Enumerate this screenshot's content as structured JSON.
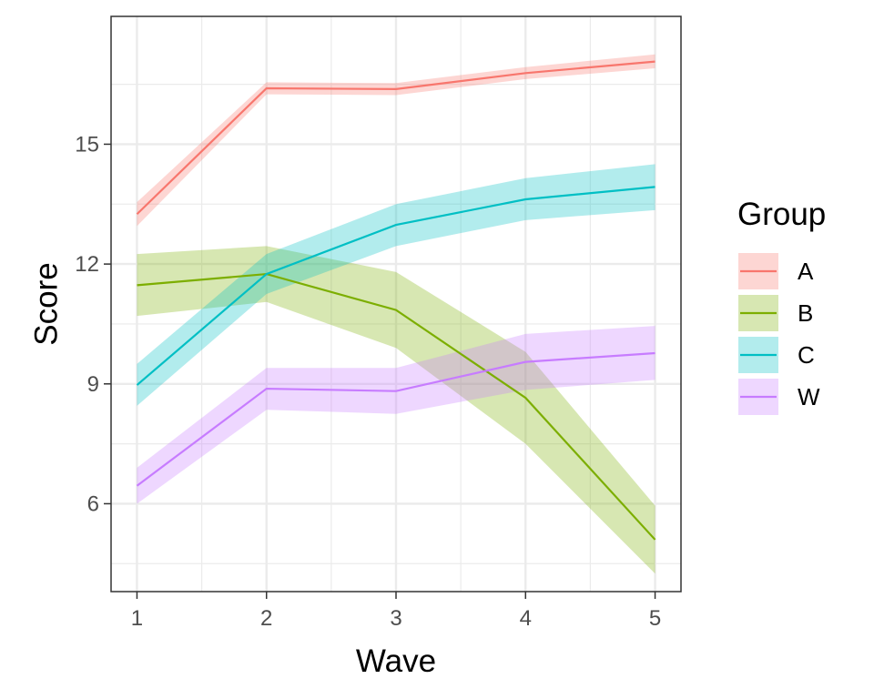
{
  "chart_data": {
    "type": "line",
    "xlabel": "Wave",
    "ylabel": "Score",
    "x": [
      1,
      2,
      3,
      4,
      5
    ],
    "xlim": [
      0.8,
      5.2
    ],
    "ylim": [
      3.8,
      18.2
    ],
    "x_ticks": [
      "1",
      "2",
      "3",
      "4",
      "5"
    ],
    "y_ticks": [
      "6",
      "9",
      "12",
      "15"
    ],
    "y_tick_values": [
      6,
      9,
      12,
      15
    ],
    "grid": true,
    "legend": {
      "title": "Group",
      "position": "right"
    },
    "series": [
      {
        "name": "A",
        "color": "#F8766D",
        "values": [
          13.25,
          16.4,
          16.38,
          16.78,
          17.07
        ],
        "lower": [
          12.95,
          16.25,
          16.23,
          16.63,
          16.9
        ],
        "upper": [
          13.55,
          16.55,
          16.53,
          16.93,
          17.25
        ]
      },
      {
        "name": "B",
        "color": "#7CAE00",
        "values": [
          11.47,
          11.75,
          10.85,
          8.65,
          5.1
        ],
        "lower": [
          10.7,
          11.05,
          9.9,
          7.5,
          4.25
        ],
        "upper": [
          12.25,
          12.45,
          11.8,
          9.8,
          5.95
        ]
      },
      {
        "name": "C",
        "color": "#00BFC4",
        "values": [
          8.97,
          11.75,
          12.98,
          13.62,
          13.93
        ],
        "lower": [
          8.45,
          11.25,
          12.45,
          13.1,
          13.35
        ],
        "upper": [
          9.5,
          12.25,
          13.5,
          14.15,
          14.5
        ]
      },
      {
        "name": "W",
        "color": "#C77CFF",
        "values": [
          6.45,
          8.88,
          8.82,
          9.55,
          9.77
        ],
        "lower": [
          6.0,
          8.35,
          8.25,
          8.85,
          9.1
        ],
        "upper": [
          6.9,
          9.4,
          9.4,
          10.25,
          10.45
        ]
      }
    ]
  }
}
